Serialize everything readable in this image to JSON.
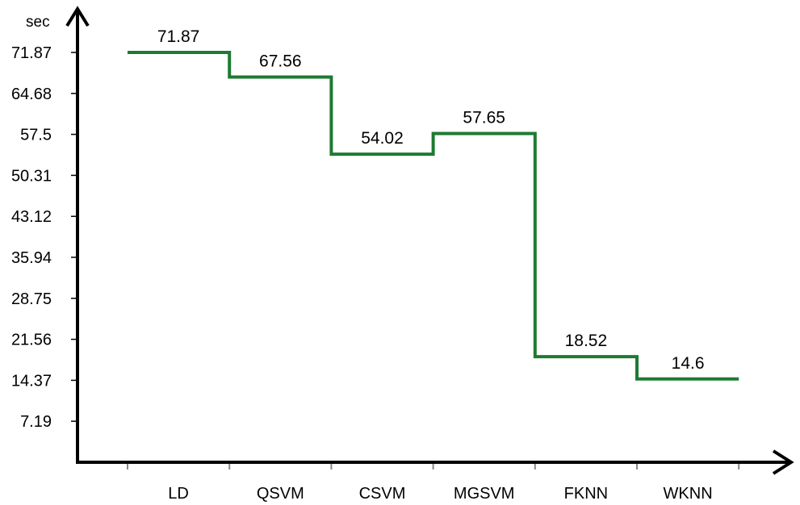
{
  "chart_data": {
    "type": "line",
    "step": true,
    "unit_label": "sec",
    "categories": [
      "LD",
      "QSVM",
      "CSVM",
      "MGSVM",
      "FKNN",
      "WKNN"
    ],
    "values": [
      71.87,
      67.56,
      54.02,
      57.65,
      18.52,
      14.6
    ],
    "data_labels": [
      "71.87",
      "67.56",
      "54.02",
      "57.65",
      "18.52",
      "14.6"
    ],
    "yticks": [
      "71.87",
      "64.68",
      "57.5",
      "50.31",
      "43.12",
      "35.94",
      "28.75",
      "21.56",
      "14.37",
      "7.19"
    ],
    "ylim": [
      0,
      71.87
    ],
    "line_color": "#1e7a32",
    "axis_color": "#000000",
    "grid": false,
    "legend": "none"
  }
}
